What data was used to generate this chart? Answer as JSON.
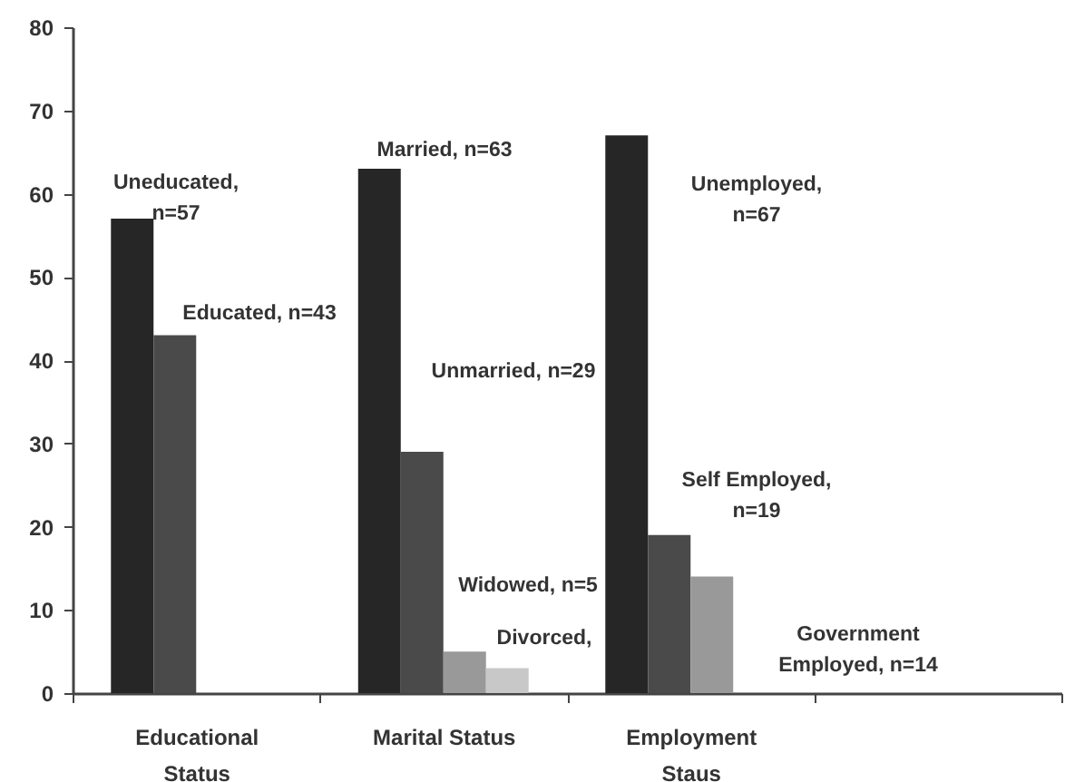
{
  "chart_data": {
    "type": "bar",
    "categories": [
      "Educational Status",
      "Marital Status",
      "Employment Staus",
      null
    ],
    "series": [
      {
        "color": "#262626",
        "values": [
          57,
          63,
          67,
          null
        ]
      },
      {
        "color": "#4a4a4a",
        "values": [
          43,
          29,
          19,
          null
        ]
      },
      {
        "color": "#999999",
        "values": [
          null,
          5,
          14,
          null
        ]
      },
      {
        "color": "#c8c8c8",
        "values": [
          null,
          3,
          null,
          null
        ]
      }
    ],
    "ylim": [
      0,
      80
    ],
    "yticks": [
      0,
      10,
      20,
      30,
      40,
      50,
      60,
      70,
      80
    ],
    "annotations": [
      "Uneducated,\nn=57",
      "Educated, n=43",
      "Married, n=63",
      "Unmarried, n=29",
      "Widowed, n=5",
      "Divorced,",
      "Unemployed,\nn=67",
      "Self Employed,\nn=19",
      "Government\nEmployed, n=14"
    ]
  }
}
